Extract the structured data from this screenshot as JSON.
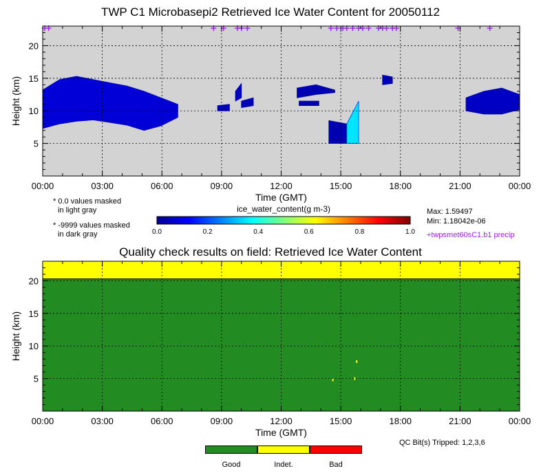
{
  "top_panel": {
    "title": "TWP C1 Microbasepi2 Retrieved Ice Water Content for 20050112",
    "xlabel": "Time (GMT)",
    "ylabel": "Height (km)",
    "notes": [
      {
        "star": "*",
        "line1": "0.0 values masked",
        "line2": "in light gray"
      },
      {
        "star": "*",
        "line1": "-9999 values masked",
        "line2": "in dark gray"
      }
    ],
    "colorbar": {
      "label": "ice_water_content(g m-3)",
      "ticks": [
        "0.0",
        "0.2",
        "0.4",
        "0.6",
        "0.8",
        "1.0"
      ],
      "colors": [
        "#00008f",
        "#0000ff",
        "#007fff",
        "#00ffff",
        "#7fff7f",
        "#ffff00",
        "#ff7f00",
        "#ff0000",
        "#7f0000"
      ]
    },
    "stats": {
      "max": "Max: 1.59497",
      "min": "Min: 1.18042e-06"
    },
    "precip_label": "+twpsmet60sC1.b1 precip",
    "precip_color": "#a020f0",
    "mask_color": "#d3d3d3"
  },
  "bottom_panel": {
    "title": "Quality check results on field: Retrieved Ice Water Content",
    "xlabel": "Time (GMT)",
    "ylabel": "Height (km)",
    "qc_bits": "QC Bit(s) Tripped: 1,2,3,6",
    "legend": [
      {
        "label": "Good",
        "color": "#228b22"
      },
      {
        "label": "Indet.",
        "color": "#ffff00"
      },
      {
        "label": "Bad",
        "color": "#ff0000"
      }
    ]
  },
  "chart_data": [
    {
      "type": "heatmap",
      "title": "TWP C1 Microbasepi2 Retrieved Ice Water Content for 20050112",
      "xlabel": "Time (GMT)",
      "ylabel": "Height (km)",
      "xticks": [
        "00:00",
        "03:00",
        "06:00",
        "09:00",
        "12:00",
        "15:00",
        "18:00",
        "21:00",
        "00:00"
      ],
      "xlim": [
        0,
        24
      ],
      "yticks": [
        "5",
        "10",
        "15",
        "20"
      ],
      "ylim": [
        0,
        23
      ],
      "grid": true,
      "max": 1.59497,
      "min": 1.18042e-06,
      "clouds": [
        {
          "h0": 0.0,
          "h1": 6.8,
          "top": [
            13.2,
            14.8,
            15.3,
            14.8,
            14.3,
            13.8,
            13.0,
            12.0,
            11.0
          ],
          "base": [
            7.3,
            8.0,
            8.4,
            8.6,
            8.2,
            7.8,
            7.0,
            7.7,
            9.0
          ],
          "value": 0.08
        },
        {
          "h0": 8.8,
          "h1": 9.4,
          "top": [
            10.8,
            11.0
          ],
          "base": [
            10.0,
            10.0
          ],
          "value": 0.05
        },
        {
          "h0": 9.7,
          "h1": 10.0,
          "top": [
            13.0,
            14.2
          ],
          "base": [
            11.5,
            12.0
          ],
          "value": 0.05
        },
        {
          "h0": 10.0,
          "h1": 10.6,
          "top": [
            11.5,
            12.0
          ],
          "base": [
            10.5,
            10.8
          ],
          "value": 0.05
        },
        {
          "h0": 12.8,
          "h1": 14.7,
          "top": [
            13.5,
            14.0,
            13.2
          ],
          "base": [
            12.0,
            12.5,
            12.8
          ],
          "value": 0.04
        },
        {
          "h0": 12.9,
          "h1": 13.9,
          "top": [
            11.5,
            11.5
          ],
          "base": [
            10.8,
            10.8
          ],
          "value": 0.04
        },
        {
          "h0": 14.4,
          "h1": 15.3,
          "top": [
            8.5,
            8.0
          ],
          "base": [
            5.0,
            5.0
          ],
          "value": 0.04
        },
        {
          "h0": 15.3,
          "h1": 15.9,
          "top": [
            8.0,
            11.5
          ],
          "base": [
            5.0,
            5.0
          ],
          "value": 0.35
        },
        {
          "h0": 17.1,
          "h1": 17.6,
          "top": [
            15.5,
            15.2
          ],
          "base": [
            14.0,
            14.2
          ],
          "value": 0.05
        },
        {
          "h0": 21.3,
          "h1": 24.0,
          "top": [
            12.0,
            13.0,
            13.5,
            12.5
          ],
          "base": [
            10.0,
            9.5,
            9.5,
            10.2
          ],
          "value": 0.06
        }
      ],
      "precip_times": [
        0.1,
        0.3,
        8.6,
        9.1,
        9.8,
        10.0,
        10.3,
        14.5,
        14.8,
        15.1,
        15.3,
        15.6,
        15.9,
        16.1,
        16.4,
        16.9,
        17.1,
        17.3,
        17.6,
        17.8,
        20.9,
        22.5
      ]
    },
    {
      "type": "heatmap",
      "title": "Quality check results on field: Retrieved Ice Water Content",
      "xlabel": "Time (GMT)",
      "ylabel": "Height (km)",
      "xticks": [
        "00:00",
        "03:00",
        "06:00",
        "09:00",
        "12:00",
        "15:00",
        "18:00",
        "21:00",
        "00:00"
      ],
      "xlim": [
        0,
        24
      ],
      "yticks": [
        "5",
        "10",
        "15",
        "20"
      ],
      "ylim": [
        0,
        23
      ],
      "grid": true,
      "regions": [
        {
          "category": "Good",
          "h0": 0,
          "h1": 24,
          "z0": 0,
          "z1": 20.3
        },
        {
          "category": "Indet.",
          "h0": 0,
          "h1": 24,
          "z0": 20.3,
          "z1": 23
        }
      ],
      "specks": [
        {
          "category": "Indet.",
          "h": 14.6,
          "z": 4.8
        },
        {
          "category": "Indet.",
          "h": 15.7,
          "z": 5.0
        },
        {
          "category": "Indet.",
          "h": 15.8,
          "z": 7.6
        }
      ]
    }
  ]
}
